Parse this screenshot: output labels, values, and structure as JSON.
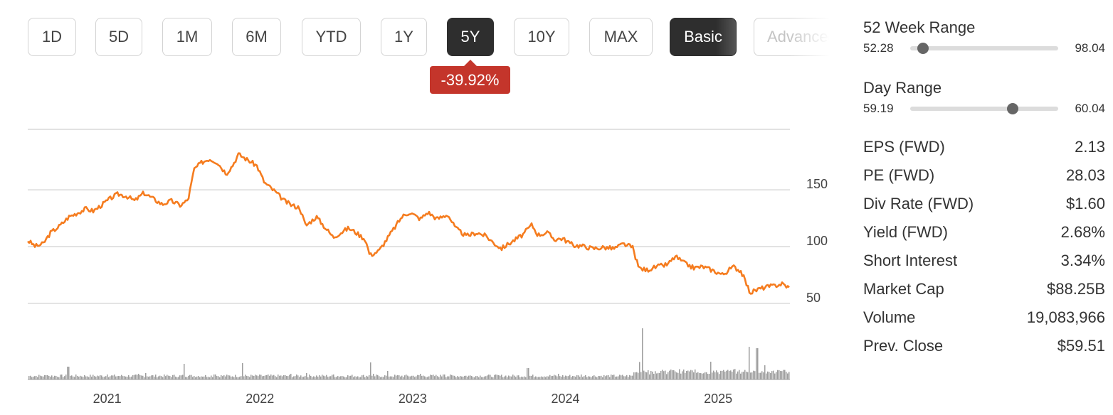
{
  "periods": [
    "1D",
    "5D",
    "1M",
    "6M",
    "YTD",
    "1Y",
    "5Y",
    "10Y",
    "MAX"
  ],
  "active_period": "5Y",
  "view_modes": [
    "Basic",
    "Advanced"
  ],
  "active_view": "Basic",
  "change_badge": "-39.92%",
  "colors": {
    "price_line": "#f57c1f",
    "volume": "#9e9e9e",
    "badge": "#c4352b",
    "active_button": "#2e2e2e"
  },
  "stats": {
    "week52": {
      "label": "52 Week Range",
      "low": "52.28",
      "high": "98.04",
      "position": 0.085
    },
    "day": {
      "label": "Day Range",
      "low": "59.19",
      "high": "60.04",
      "position": 0.69
    },
    "rows": [
      {
        "label": "EPS (FWD)",
        "value": "2.13"
      },
      {
        "label": "PE (FWD)",
        "value": "28.03"
      },
      {
        "label": "Div Rate (FWD)",
        "value": "$1.60"
      },
      {
        "label": "Yield (FWD)",
        "value": "2.68%"
      },
      {
        "label": "Short Interest",
        "value": "3.34%"
      },
      {
        "label": "Market Cap",
        "value": "$88.25B"
      },
      {
        "label": "Volume",
        "value": "19,083,966"
      },
      {
        "label": "Prev. Close",
        "value": "$59.51"
      }
    ]
  },
  "chart_data": {
    "type": "line",
    "title": "",
    "xlabel": "",
    "ylabel": "",
    "y_ticks": [
      50,
      100,
      150
    ],
    "ylim": [
      43,
      197
    ],
    "x_ticks": [
      "2021",
      "2022",
      "2023",
      "2024",
      "2025"
    ],
    "xlim": [
      2020.48,
      2025.47
    ],
    "grid": true,
    "series": [
      {
        "values": [
          [
            2020.48,
            99
          ],
          [
            2020.53,
            94
          ],
          [
            2020.58,
            96
          ],
          [
            2020.63,
            106
          ],
          [
            2020.69,
            112
          ],
          [
            2020.75,
            120
          ],
          [
            2020.8,
            123
          ],
          [
            2020.86,
            127
          ],
          [
            2020.91,
            125
          ],
          [
            2020.97,
            131
          ],
          [
            2021.02,
            136
          ],
          [
            2021.07,
            140
          ],
          [
            2021.13,
            138
          ],
          [
            2021.18,
            134
          ],
          [
            2021.24,
            141
          ],
          [
            2021.3,
            136
          ],
          [
            2021.36,
            131
          ],
          [
            2021.42,
            134
          ],
          [
            2021.48,
            130
          ],
          [
            2021.53,
            135
          ],
          [
            2021.57,
            162
          ],
          [
            2021.62,
            168
          ],
          [
            2021.67,
            171
          ],
          [
            2021.72,
            168
          ],
          [
            2021.78,
            158
          ],
          [
            2021.82,
            165
          ],
          [
            2021.86,
            175
          ],
          [
            2021.92,
            170
          ],
          [
            2021.98,
            165
          ],
          [
            2022.03,
            150
          ],
          [
            2022.1,
            142
          ],
          [
            2022.16,
            134
          ],
          [
            2022.21,
            130
          ],
          [
            2022.26,
            128
          ],
          [
            2022.3,
            112
          ],
          [
            2022.37,
            120
          ],
          [
            2022.43,
            110
          ],
          [
            2022.48,
            102
          ],
          [
            2022.53,
            106
          ],
          [
            2022.58,
            110
          ],
          [
            2022.63,
            106
          ],
          [
            2022.69,
            100
          ],
          [
            2022.72,
            86
          ],
          [
            2022.78,
            90
          ],
          [
            2022.83,
            100
          ],
          [
            2022.88,
            110
          ],
          [
            2022.93,
            120
          ],
          [
            2022.98,
            124
          ],
          [
            2023.05,
            118
          ],
          [
            2023.1,
            124
          ],
          [
            2023.16,
            118
          ],
          [
            2023.23,
            122
          ],
          [
            2023.28,
            110
          ],
          [
            2023.35,
            103
          ],
          [
            2023.42,
            106
          ],
          [
            2023.48,
            103
          ],
          [
            2023.53,
            97
          ],
          [
            2023.58,
            92
          ],
          [
            2023.65,
            98
          ],
          [
            2023.72,
            104
          ],
          [
            2023.78,
            113
          ],
          [
            2023.82,
            104
          ],
          [
            2023.88,
            106
          ],
          [
            2023.93,
            100
          ],
          [
            2023.98,
            101
          ],
          [
            2024.05,
            95
          ],
          [
            2024.12,
            94
          ],
          [
            2024.18,
            92
          ],
          [
            2024.25,
            93
          ],
          [
            2024.32,
            92
          ],
          [
            2024.38,
            96
          ],
          [
            2024.44,
            93
          ],
          [
            2024.48,
            75
          ],
          [
            2024.53,
            73
          ],
          [
            2024.6,
            76
          ],
          [
            2024.67,
            78
          ],
          [
            2024.72,
            85
          ],
          [
            2024.78,
            79
          ],
          [
            2024.84,
            75
          ],
          [
            2024.9,
            76
          ],
          [
            2024.96,
            73
          ],
          [
            2025.03,
            69
          ],
          [
            2025.1,
            76
          ],
          [
            2025.15,
            72
          ],
          [
            2025.21,
            53
          ],
          [
            2025.26,
            56
          ],
          [
            2025.31,
            58
          ],
          [
            2025.36,
            59
          ],
          [
            2025.42,
            61
          ],
          [
            2025.47,
            57
          ]
        ]
      }
    ],
    "volume": {
      "values": [
        [
          2020.6,
          0.06
        ],
        [
          2020.74,
          0.18
        ],
        [
          2020.8,
          0.05
        ],
        [
          2021.0,
          0.07
        ],
        [
          2021.2,
          0.08
        ],
        [
          2021.25,
          0.09
        ],
        [
          2021.5,
          0.22
        ],
        [
          2021.7,
          0.07
        ],
        [
          2021.78,
          0.06
        ],
        [
          2021.88,
          0.23
        ],
        [
          2022.05,
          0.07
        ],
        [
          2022.2,
          0.08
        ],
        [
          2022.3,
          0.09
        ],
        [
          2022.48,
          0.07
        ],
        [
          2022.72,
          0.24
        ],
        [
          2022.83,
          0.12
        ],
        [
          2023.05,
          0.08
        ],
        [
          2023.2,
          0.07
        ],
        [
          2023.5,
          0.06
        ],
        [
          2023.75,
          0.16
        ],
        [
          2023.95,
          0.08
        ],
        [
          2024.1,
          0.07
        ],
        [
          2024.3,
          0.06
        ],
        [
          2024.45,
          0.1
        ],
        [
          2024.5,
          0.72
        ],
        [
          2024.56,
          0.12
        ],
        [
          2024.7,
          0.13
        ],
        [
          2024.84,
          0.1
        ],
        [
          2024.95,
          0.25
        ],
        [
          2025.02,
          0.12
        ],
        [
          2025.1,
          0.14
        ],
        [
          2025.2,
          0.46
        ],
        [
          2025.25,
          0.44
        ],
        [
          2025.3,
          0.2
        ],
        [
          2025.4,
          0.12
        ]
      ]
    }
  }
}
